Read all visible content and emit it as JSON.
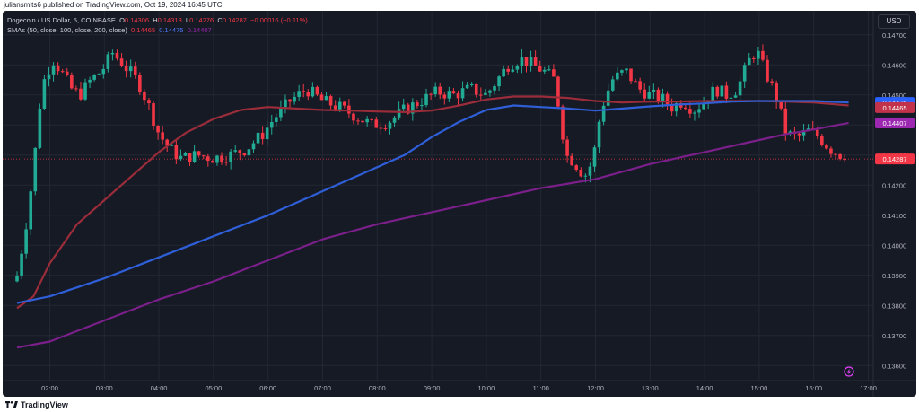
{
  "header": {
    "published": "juliansmits6 published on TradingView.com, Oct 19, 2024 16:45 UTC"
  },
  "legend": {
    "symbol": "Dogecoin / US Dollar, 5, COINBASE",
    "o_label": "O",
    "o": "0.14306",
    "h_label": "H",
    "h": "0.14318",
    "l_label": "L",
    "l": "0.14276",
    "c_label": "C",
    "c": "0.14287",
    "change": "−0.00016 (−0.11%)",
    "sma_label": "SMAs (50, close, 100, close, 200, close)",
    "sma50": "0.14465",
    "sma100": "0.14475",
    "sma200": "0.14407"
  },
  "currency_button": "USD",
  "footer": {
    "brand": "TradingView"
  },
  "colors": {
    "background": "#161a25",
    "up": "#22ab94",
    "down": "#f23645",
    "sma50": "#9b2c3a",
    "sma100": "#2f5fd8",
    "sma200": "#7b1f8a",
    "grid": "#232733"
  },
  "chart_data": {
    "type": "candlestick",
    "title": "Dogecoin / US Dollar, 5, COINBASE",
    "ylim": [
      0.1355,
      0.1478
    ],
    "y_ticks": [
      "0.14700",
      "0.14600",
      "0.14500",
      "0.14400",
      "0.14300",
      "0.14200",
      "0.14100",
      "0.14000",
      "0.13900",
      "0.13800",
      "0.13700",
      "0.13600"
    ],
    "x_ticks": [
      "02:00",
      "03:00",
      "04:00",
      "05:00",
      "06:00",
      "07:00",
      "08:00",
      "09:00",
      "10:00",
      "11:00",
      "12:00",
      "13:00",
      "14:00",
      "15:00",
      "16:00",
      "17:00"
    ],
    "x_start_hour": 1.4,
    "x_end_hour": 16.64,
    "close_anchors": [
      [
        1.4,
        0.139
      ],
      [
        1.55,
        0.1405
      ],
      [
        1.7,
        0.1425
      ],
      [
        1.8,
        0.1445
      ],
      [
        1.9,
        0.1455
      ],
      [
        2.05,
        0.1462
      ],
      [
        2.2,
        0.1458
      ],
      [
        2.4,
        0.1452
      ],
      [
        2.55,
        0.145
      ],
      [
        2.75,
        0.1455
      ],
      [
        2.95,
        0.1458
      ],
      [
        3.15,
        0.1464
      ],
      [
        3.35,
        0.146
      ],
      [
        3.6,
        0.1455
      ],
      [
        3.8,
        0.1447
      ],
      [
        4.0,
        0.1437
      ],
      [
        4.2,
        0.1432
      ],
      [
        4.4,
        0.1429
      ],
      [
        4.7,
        0.143
      ],
      [
        5.0,
        0.1429
      ],
      [
        5.3,
        0.143
      ],
      [
        5.6,
        0.1432
      ],
      [
        5.9,
        0.1437
      ],
      [
        6.1,
        0.1442
      ],
      [
        6.4,
        0.1448
      ],
      [
        6.7,
        0.1452
      ],
      [
        7.0,
        0.1448
      ],
      [
        7.3,
        0.1446
      ],
      [
        7.6,
        0.1443
      ],
      [
        7.9,
        0.144
      ],
      [
        8.2,
        0.1441
      ],
      [
        8.5,
        0.1445
      ],
      [
        8.8,
        0.1448
      ],
      [
        9.1,
        0.1451
      ],
      [
        9.4,
        0.145
      ],
      [
        9.7,
        0.1452
      ],
      [
        10.0,
        0.145
      ],
      [
        10.2,
        0.1455
      ],
      [
        10.4,
        0.146
      ],
      [
        10.65,
        0.1462
      ],
      [
        10.85,
        0.146
      ],
      [
        11.05,
        0.1458
      ],
      [
        11.25,
        0.1455
      ],
      [
        11.38,
        0.144
      ],
      [
        11.45,
        0.143
      ],
      [
        11.6,
        0.1428
      ],
      [
        11.8,
        0.1423
      ],
      [
        11.95,
        0.1428
      ],
      [
        12.1,
        0.1445
      ],
      [
        12.3,
        0.1455
      ],
      [
        12.55,
        0.1458
      ],
      [
        12.8,
        0.1452
      ],
      [
        13.0,
        0.145
      ],
      [
        13.2,
        0.1449
      ],
      [
        13.4,
        0.1446
      ],
      [
        13.6,
        0.1448
      ],
      [
        13.8,
        0.1445
      ],
      [
        14.0,
        0.1448
      ],
      [
        14.2,
        0.1452
      ],
      [
        14.4,
        0.145
      ],
      [
        14.6,
        0.1452
      ],
      [
        14.8,
        0.1461
      ],
      [
        14.95,
        0.1465
      ],
      [
        15.1,
        0.1458
      ],
      [
        15.3,
        0.145
      ],
      [
        15.5,
        0.1437
      ],
      [
        15.7,
        0.1436
      ],
      [
        15.9,
        0.1438
      ],
      [
        16.1,
        0.1436
      ],
      [
        16.3,
        0.1432
      ],
      [
        16.5,
        0.143
      ],
      [
        16.64,
        0.14287
      ]
    ],
    "series": [
      {
        "name": "SMA 50",
        "color": "#9b2c3a",
        "points": [
          [
            1.4,
            0.13791
          ],
          [
            1.7,
            0.1383
          ],
          [
            2.0,
            0.1394
          ],
          [
            2.5,
            0.1407
          ],
          [
            3.0,
            0.1415
          ],
          [
            3.5,
            0.1423
          ],
          [
            4.0,
            0.1431
          ],
          [
            4.5,
            0.14375
          ],
          [
            5.0,
            0.1442
          ],
          [
            5.5,
            0.1445
          ],
          [
            6.0,
            0.1446
          ],
          [
            6.5,
            0.14455
          ],
          [
            7.0,
            0.1445
          ],
          [
            7.5,
            0.14448
          ],
          [
            8.0,
            0.14445
          ],
          [
            8.5,
            0.14443
          ],
          [
            9.0,
            0.14448
          ],
          [
            9.5,
            0.14465
          ],
          [
            10.0,
            0.14485
          ],
          [
            10.5,
            0.14495
          ],
          [
            11.0,
            0.14495
          ],
          [
            11.5,
            0.1449
          ],
          [
            12.0,
            0.1448
          ],
          [
            12.5,
            0.14475
          ],
          [
            13.0,
            0.14478
          ],
          [
            13.5,
            0.14478
          ],
          [
            14.0,
            0.1448
          ],
          [
            14.5,
            0.1448
          ],
          [
            15.0,
            0.1448
          ],
          [
            15.5,
            0.14478
          ],
          [
            16.0,
            0.14475
          ],
          [
            16.64,
            0.14465
          ]
        ]
      },
      {
        "name": "SMA 100",
        "color": "#2f5fd8",
        "points": [
          [
            1.4,
            0.13808
          ],
          [
            2.0,
            0.1383
          ],
          [
            2.5,
            0.1386
          ],
          [
            3.0,
            0.1389
          ],
          [
            4.0,
            0.1396
          ],
          [
            5.0,
            0.1403
          ],
          [
            6.0,
            0.141
          ],
          [
            7.0,
            0.1418
          ],
          [
            8.0,
            0.1426
          ],
          [
            8.5,
            0.143
          ],
          [
            9.0,
            0.1436
          ],
          [
            9.5,
            0.1441
          ],
          [
            10.0,
            0.1445
          ],
          [
            10.5,
            0.14465
          ],
          [
            11.0,
            0.1446
          ],
          [
            11.5,
            0.14455
          ],
          [
            12.0,
            0.14448
          ],
          [
            12.5,
            0.14455
          ],
          [
            13.0,
            0.14462
          ],
          [
            13.5,
            0.14468
          ],
          [
            14.0,
            0.14472
          ],
          [
            14.5,
            0.14478
          ],
          [
            15.0,
            0.1448
          ],
          [
            15.5,
            0.1448
          ],
          [
            16.0,
            0.1448
          ],
          [
            16.64,
            0.14475
          ]
        ]
      },
      {
        "name": "SMA 200",
        "color": "#7b1f8a",
        "points": [
          [
            1.4,
            0.1366
          ],
          [
            2.0,
            0.1368
          ],
          [
            3.0,
            0.1375
          ],
          [
            4.0,
            0.1382
          ],
          [
            5.0,
            0.1388
          ],
          [
            6.0,
            0.1395
          ],
          [
            7.0,
            0.1402
          ],
          [
            8.0,
            0.1407
          ],
          [
            9.0,
            0.1411
          ],
          [
            10.0,
            0.1415
          ],
          [
            11.0,
            0.1419
          ],
          [
            12.0,
            0.1422
          ],
          [
            13.0,
            0.1427
          ],
          [
            14.0,
            0.1431
          ],
          [
            15.0,
            0.1435
          ],
          [
            15.5,
            0.1437
          ],
          [
            16.0,
            0.14385
          ],
          [
            16.64,
            0.14407
          ]
        ]
      }
    ],
    "price_labels": [
      {
        "name": "SMA 100",
        "value": "0.14475",
        "y": 0.14475,
        "color": "#2962ff"
      },
      {
        "name": "SMA 50",
        "value": "0.14465",
        "y": 0.14458,
        "color": "#c2334b"
      },
      {
        "name": "SMA 200",
        "value": "0.14407",
        "y": 0.14407,
        "color": "#9c27b0"
      },
      {
        "name": "Last",
        "value": "0.14287",
        "y": 0.14287,
        "color": "#f23645"
      }
    ],
    "last_price": 0.14287
  }
}
